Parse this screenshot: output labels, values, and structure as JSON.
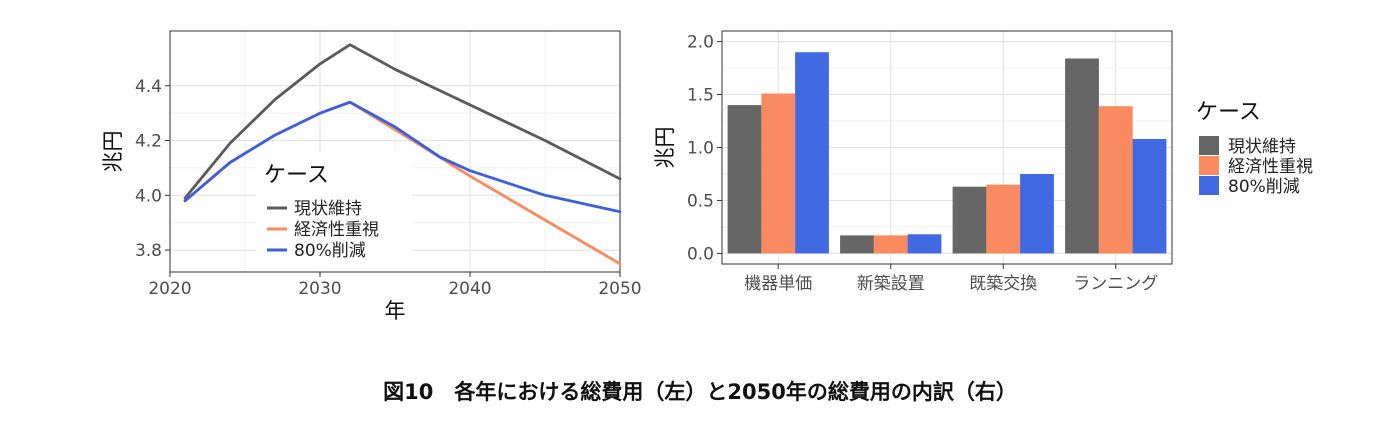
{
  "caption": "図10　各年における総費用（左）と2050年の総費用の内訳（右）",
  "legend_title": "ケース",
  "chart_data": [
    {
      "type": "line",
      "xlabel": "年",
      "ylabel": "兆円",
      "xlim": [
        2020,
        2050
      ],
      "ylim": [
        3.72,
        4.6
      ],
      "xticks": [
        "2020",
        "2030",
        "2040",
        "2050"
      ],
      "yticks": [
        "3.8",
        "4.0",
        "4.2",
        "4.4"
      ],
      "grid": true,
      "legend_position": "inside-bottom-left",
      "series": [
        {
          "name": "現状維持",
          "color": "#5a5a5a",
          "x": [
            2021,
            2024,
            2027,
            2030,
            2032,
            2035,
            2040,
            2045,
            2050
          ],
          "y": [
            3.99,
            4.19,
            4.35,
            4.48,
            4.55,
            4.46,
            4.33,
            4.2,
            4.06
          ]
        },
        {
          "name": "経済性重視",
          "color": "#fa8a5f",
          "x": [
            2021,
            2024,
            2027,
            2030,
            2032,
            2035,
            2040,
            2045,
            2050
          ],
          "y": [
            3.98,
            4.12,
            4.22,
            4.3,
            4.34,
            4.24,
            4.07,
            3.91,
            3.75
          ]
        },
        {
          "name": "80%削減",
          "color": "#3b5fde",
          "x": [
            2021,
            2024,
            2027,
            2030,
            2032,
            2035,
            2038,
            2040,
            2045,
            2050
          ],
          "y": [
            3.98,
            4.12,
            4.22,
            4.3,
            4.34,
            4.25,
            4.14,
            4.09,
            4.0,
            3.94
          ]
        }
      ]
    },
    {
      "type": "bar",
      "xlabel": "",
      "ylabel": "兆円",
      "ylim": [
        -0.1,
        2.1
      ],
      "yticks": [
        "0.0",
        "0.5",
        "1.0",
        "1.5",
        "2.0"
      ],
      "categories": [
        "機器単価",
        "新築設置",
        "既築交換",
        "ランニング"
      ],
      "grid": true,
      "legend_position": "right",
      "series": [
        {
          "name": "現状維持",
          "color": "#666666",
          "values": [
            1.4,
            0.17,
            0.63,
            1.84
          ]
        },
        {
          "name": "経済性重視",
          "color": "#fa8a5f",
          "values": [
            1.51,
            0.17,
            0.65,
            1.39
          ]
        },
        {
          "name": "80%削減",
          "color": "#4169e1",
          "values": [
            1.9,
            0.18,
            0.75,
            1.08
          ]
        }
      ]
    }
  ]
}
